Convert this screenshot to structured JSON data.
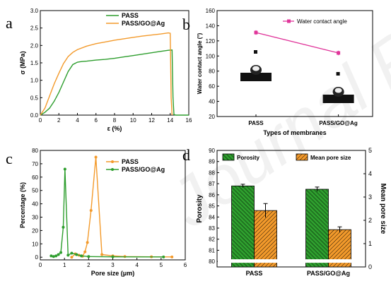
{
  "watermark": "Journal Pre-proofs",
  "chart_data": [
    {
      "panel": "a",
      "type": "line",
      "xlabel": "ε (%)",
      "ylabel": "σ (MPa)",
      "xlim": [
        0,
        16
      ],
      "ylim": [
        0,
        3.0
      ],
      "xticks": [
        "0",
        "2",
        "4",
        "6",
        "8",
        "10",
        "12",
        "14",
        "16"
      ],
      "yticks": [
        "0.0",
        "0.5",
        "1.0",
        "1.5",
        "2.0",
        "2.5",
        "3.0"
      ],
      "legend_position": "top-right",
      "series": [
        {
          "name": "PASS",
          "color": "#2e9e2e",
          "x": [
            0,
            0.5,
            1,
            1.5,
            2,
            2.5,
            3,
            3.5,
            4,
            4.5,
            5,
            6,
            7,
            8,
            9,
            10,
            11,
            12,
            13,
            13.8,
            14.2,
            14.3,
            14.4,
            14.6,
            16
          ],
          "y": [
            0,
            0.08,
            0.2,
            0.4,
            0.65,
            0.95,
            1.25,
            1.45,
            1.52,
            1.54,
            1.55,
            1.58,
            1.6,
            1.63,
            1.67,
            1.71,
            1.75,
            1.79,
            1.83,
            1.86,
            1.87,
            0.5,
            0.02,
            0.0,
            0.0
          ]
        },
        {
          "name": "PASS/GO@Ag",
          "color": "#f39a2b",
          "x": [
            0,
            0.5,
            1,
            1.5,
            2,
            2.5,
            3,
            3.5,
            4,
            5,
            6,
            7,
            8,
            9,
            10,
            11,
            12,
            13,
            13.8,
            14.0,
            14.1,
            14.2
          ],
          "y": [
            0,
            0.2,
            0.55,
            0.9,
            1.2,
            1.48,
            1.68,
            1.8,
            1.88,
            1.98,
            2.05,
            2.1,
            2.15,
            2.19,
            2.23,
            2.27,
            2.3,
            2.33,
            2.36,
            2.35,
            0.5,
            0.0
          ]
        }
      ]
    },
    {
      "panel": "b",
      "type": "line",
      "xlabel": "Types of membranes",
      "ylabel": "Water contact angle (°)",
      "categories": [
        "PASS",
        "PASS/GO@Ag"
      ],
      "ylim": [
        20,
        160
      ],
      "yticks": [
        "20",
        "40",
        "60",
        "80",
        "100",
        "120",
        "140",
        "160"
      ],
      "legend_position": "top-right",
      "series": [
        {
          "name": "Water contact angle",
          "color": "#e0359a",
          "values": [
            131,
            104
          ],
          "errors": [
            3,
            3
          ]
        }
      ]
    },
    {
      "panel": "c",
      "type": "line",
      "xlabel": "Pore size (μm)",
      "ylabel": "Percentage (%)",
      "xlim": [
        0,
        6
      ],
      "ylim": [
        -2,
        80
      ],
      "xticks": [
        "0",
        "1",
        "2",
        "3",
        "4",
        "5",
        "6"
      ],
      "yticks": [
        "0",
        "10",
        "20",
        "30",
        "40",
        "50",
        "60",
        "70",
        "80"
      ],
      "legend_position": "top-right",
      "series": [
        {
          "name": "PASS",
          "color": "#f39a2b",
          "x": [
            1.3,
            1.45,
            1.6,
            1.75,
            1.85,
            1.95,
            2.1,
            2.3,
            2.55,
            3.0,
            3.5,
            4.6,
            5.45
          ],
          "y": [
            0,
            2.5,
            1.5,
            0.8,
            4.0,
            11.0,
            35.0,
            75.0,
            2.0,
            1.0,
            0.5,
            0.3,
            0.2
          ]
        },
        {
          "name": "PASS/GO@Ag",
          "color": "#2e9e2e",
          "x": [
            0.45,
            0.55,
            0.65,
            0.75,
            0.85,
            0.95,
            1.02,
            1.15,
            1.3,
            1.5,
            1.7,
            2.0,
            3.0,
            5.1
          ],
          "y": [
            1.0,
            0.5,
            1.0,
            2.0,
            3.5,
            22.5,
            66.0,
            1.5,
            3.0,
            2.0,
            1.0,
            0.5,
            0.3,
            0.2
          ]
        }
      ]
    },
    {
      "panel": "d",
      "type": "bar",
      "xlabel": "",
      "ylabel": "Porosity",
      "y2label": "Mean pore size",
      "categories": [
        "PASS",
        "PASS/GO@Ag"
      ],
      "ylim": [
        79.5,
        90
      ],
      "yticks": [
        "80",
        "81",
        "82",
        "83",
        "84",
        "85",
        "86",
        "87",
        "88",
        "89",
        "90"
      ],
      "y2lim": [
        0,
        5
      ],
      "y2ticks": [
        "0",
        "1",
        "2",
        "3",
        "4",
        "5"
      ],
      "legend_position": "top",
      "series": [
        {
          "name": "Porosity",
          "color": "#2e9e2e",
          "axis": "left",
          "values": [
            86.8,
            86.5
          ],
          "errors": [
            0.15,
            0.2
          ]
        },
        {
          "name": "Mean pore size",
          "color": "#f39a2b",
          "axis": "right",
          "values": [
            2.42,
            1.6
          ],
          "errors": [
            0.3,
            0.12
          ]
        }
      ]
    }
  ]
}
